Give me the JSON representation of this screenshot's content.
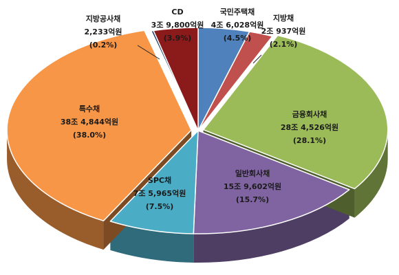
{
  "chart_data": {
    "type": "pie",
    "title": "",
    "slices": [
      {
        "name": "국민주택채",
        "amount": "4조 6,028억원",
        "percent_label": "(4.5%)",
        "value": 4.5,
        "color": "#4F81BD"
      },
      {
        "name": "지방채",
        "amount": "2조 937억원",
        "percent_label": "(2.1%)",
        "value": 2.1,
        "color": "#C0504D"
      },
      {
        "name": "금융회사채",
        "amount": "28조 4,526억원",
        "percent_label": "(28.1%)",
        "value": 28.1,
        "color": "#9BBB59"
      },
      {
        "name": "일반회사채",
        "amount": "15조 9,602억원",
        "percent_label": "(15.7%)",
        "value": 15.7,
        "color": "#8064A2"
      },
      {
        "name": "SPC채",
        "amount": "7조 5,965억원",
        "percent_label": "(7.5%)",
        "value": 7.5,
        "color": "#4BACC6"
      },
      {
        "name": "특수채",
        "amount": "38조 4,844억원",
        "percent_label": "(38.0%)",
        "value": 38.0,
        "color": "#F79646"
      },
      {
        "name": "지방공사채",
        "amount": "2,233억원",
        "percent_label": "(0.2%)",
        "value": 0.2,
        "color": "#1F3864"
      },
      {
        "name": "CD",
        "amount": "3조 9,800억원",
        "percent_label": "(3.9%)",
        "value": 3.9,
        "color": "#8B1A1A"
      }
    ]
  }
}
